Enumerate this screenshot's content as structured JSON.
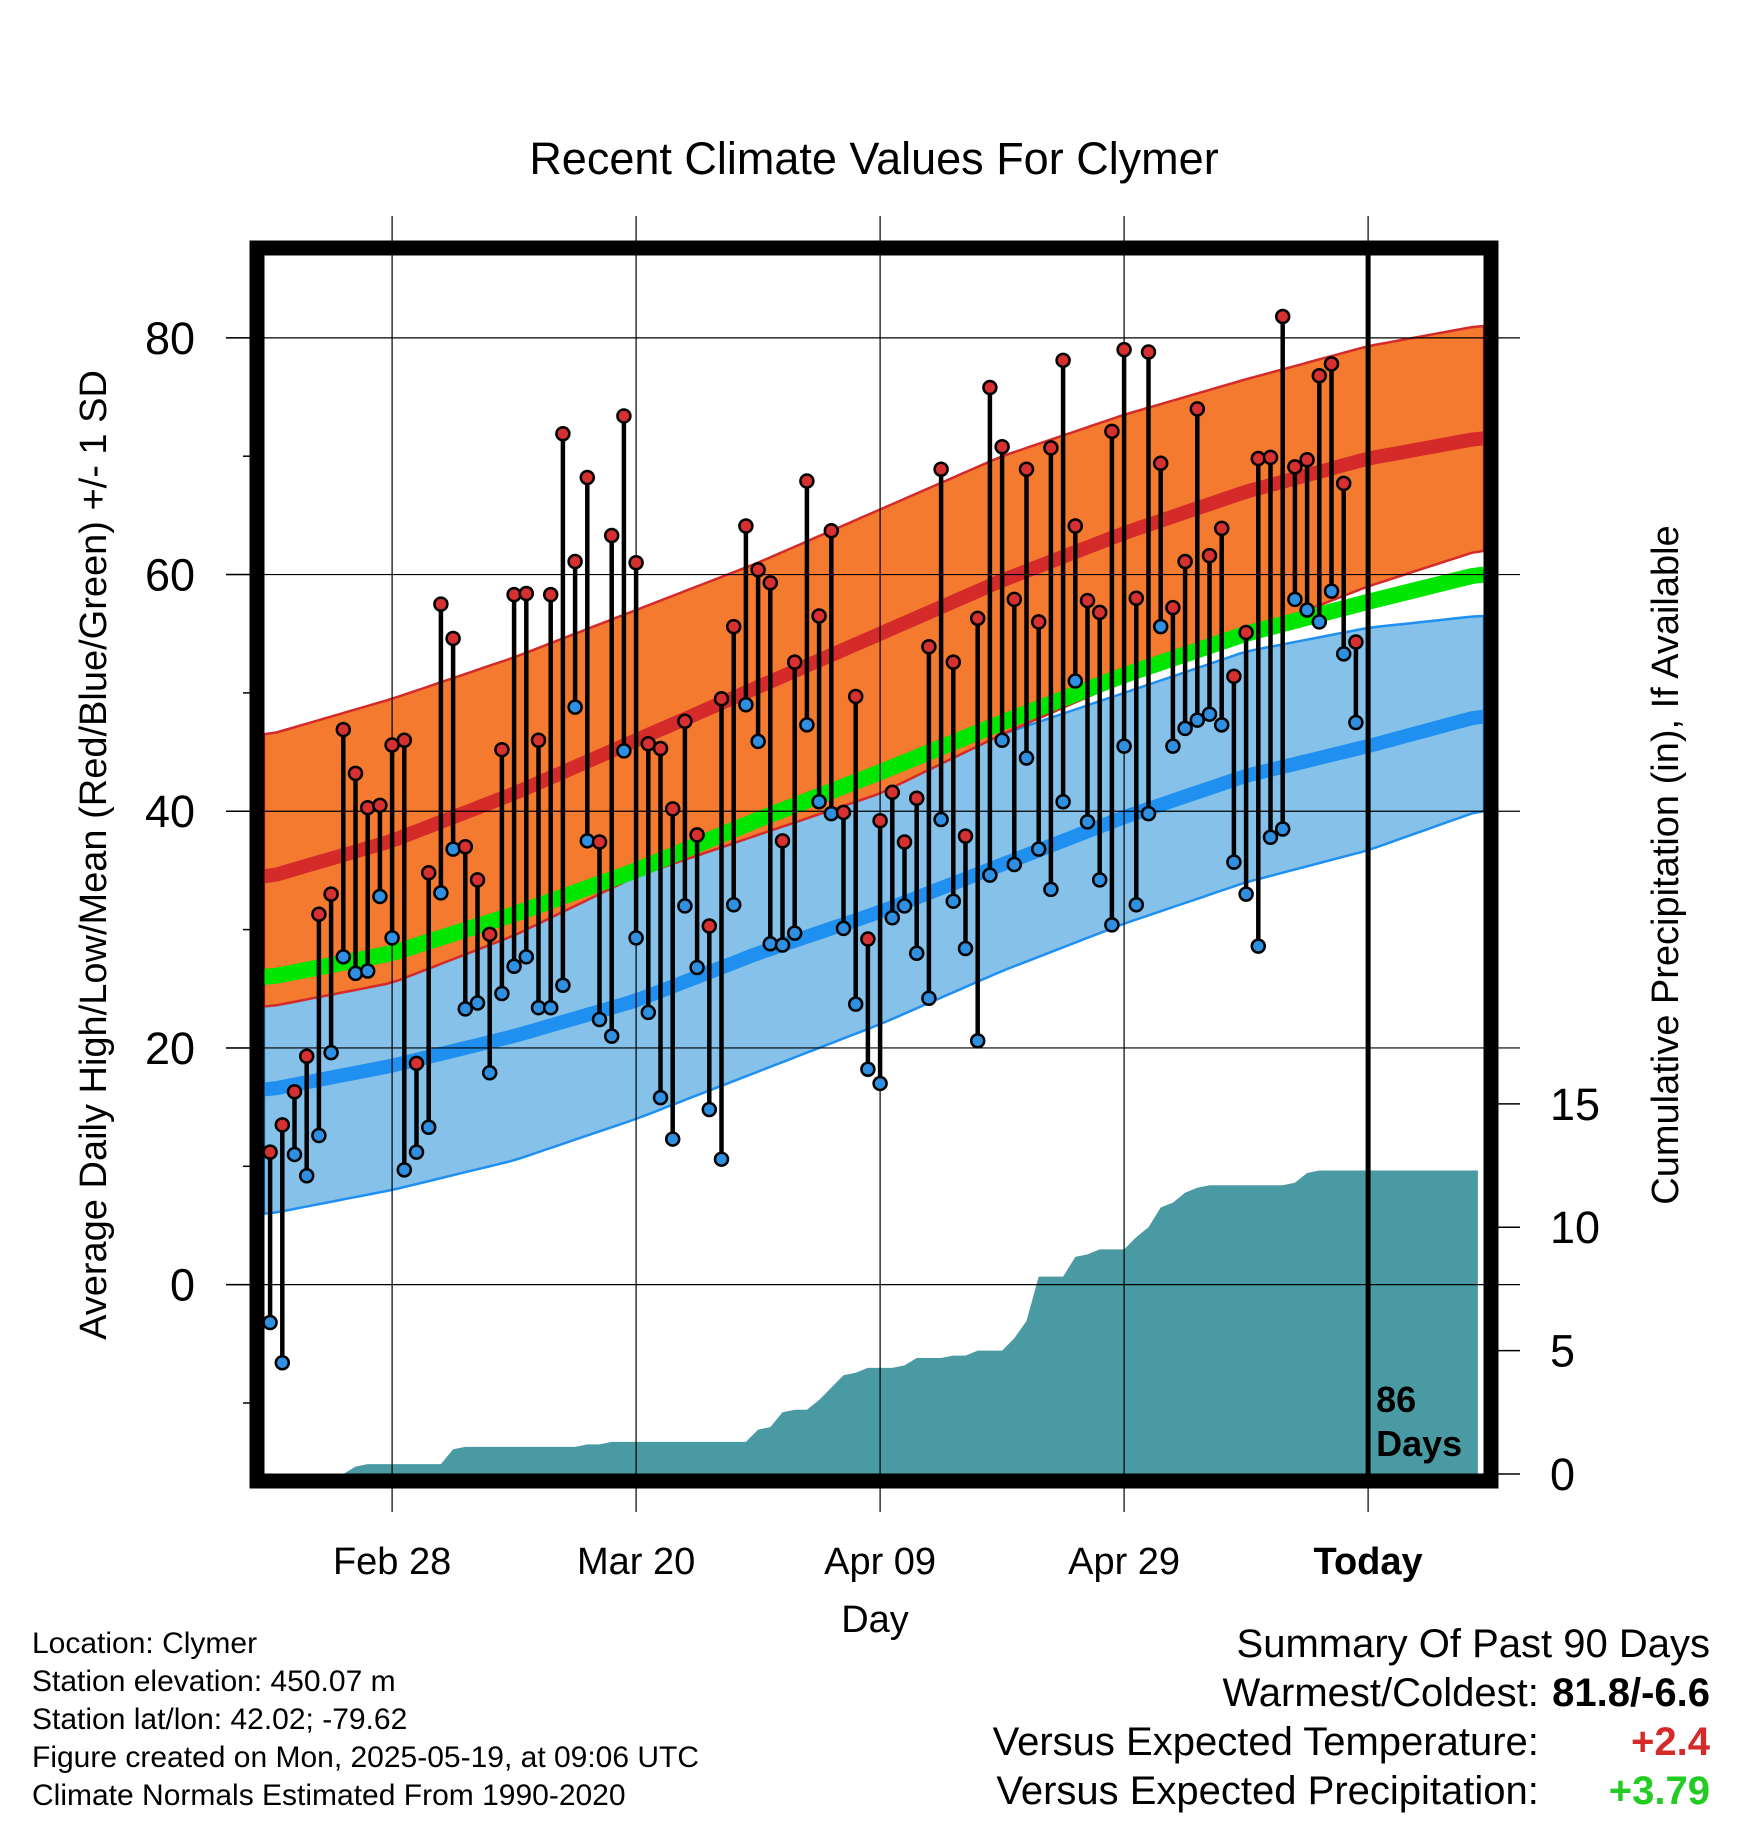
{
  "chart_data": {
    "type": "line",
    "title": "Recent Climate Values For Clymer",
    "xlabel": "Day",
    "ylabel": "Average Daily High/Low/Mean (Red/Blue/Green) +/- 1 SD",
    "ylabel_right": "Cumulative Precipitation (in), If Available",
    "x_ticks": [
      "Feb 28",
      "Mar 20",
      "Apr 09",
      "Apr 29",
      "Today"
    ],
    "x_tick_days": [
      10,
      30,
      50,
      70,
      90
    ],
    "xlim": [
      -0.5,
      99.5
    ],
    "ylim": [
      -16,
      87
    ],
    "y_ticks": [
      0,
      20,
      40,
      60,
      80
    ],
    "y2_ticks": [
      0,
      5,
      10,
      15
    ],
    "y2lim": [
      0,
      49.4
    ],
    "today_marker_day": 90,
    "today_label": [
      "86",
      "Days"
    ],
    "grid": true,
    "colors": {
      "high_band": "#f47a30",
      "high_line": "#d42a2a",
      "low_band": "#85c1e9",
      "low_line": "#1f8ff0",
      "mean_line": "#00e600",
      "mean_overlap": "#9a1414",
      "precip": "#4a9aa3",
      "high_dot": "#d63030",
      "low_dot": "#2f8fe0"
    },
    "normals": {
      "day": [
        0,
        10,
        20,
        30,
        40,
        50,
        60,
        70,
        80,
        90,
        99
      ],
      "high_mean": [
        34.5,
        37.5,
        41.5,
        46,
        50.5,
        55,
        59.5,
        63.5,
        67,
        69.8,
        71.5
      ],
      "high_upper": [
        46.5,
        49.5,
        53,
        57,
        61,
        65.5,
        70,
        73.5,
        76.5,
        79.3,
        81
      ],
      "high_lower": [
        23.5,
        25.5,
        29.5,
        34.5,
        38,
        41.5,
        46.5,
        51,
        55,
        59,
        62
      ],
      "low_mean": [
        16.5,
        18.5,
        21,
        24,
        28,
        31.5,
        35.5,
        39.5,
        43,
        45.5,
        48
      ],
      "low_upper": [
        28.5,
        29.5,
        31.5,
        35.5,
        39.5,
        43,
        46.5,
        50,
        53.5,
        55.5,
        56.5
      ],
      "low_lower": [
        6,
        8,
        10.5,
        14,
        18,
        22,
        26.5,
        30.5,
        34,
        36.7,
        40
      ],
      "avg_mean": [
        26,
        28,
        31.3,
        35,
        39.3,
        43.3,
        47.5,
        51.5,
        55,
        57.7,
        60
      ]
    },
    "series": [
      {
        "name": "High",
        "values": [
          11.2,
          13.5,
          16.3,
          19.3,
          31.3,
          33.0,
          46.9,
          43.2,
          40.3,
          40.5,
          45.6,
          46.0,
          18.7,
          34.8,
          57.5,
          54.6,
          37.0,
          34.2,
          29.6,
          45.2,
          58.3,
          58.4,
          46.0,
          58.3,
          71.9,
          61.1,
          68.2,
          37.4,
          63.3,
          73.4,
          61.0,
          45.7,
          45.3,
          40.2,
          47.6,
          38.0,
          30.3,
          49.5,
          55.6,
          64.1,
          60.4,
          59.3,
          37.5,
          52.6,
          67.9,
          56.5,
          63.7,
          39.9,
          49.7,
          29.2,
          39.2,
          41.6,
          37.4,
          41.1,
          53.9,
          68.9,
          52.6,
          37.9,
          56.3,
          75.8,
          70.8,
          57.9,
          68.9,
          56.0,
          70.7,
          78.1,
          64.1,
          57.8,
          56.8,
          72.1,
          79.0,
          58.0,
          78.8,
          69.4,
          57.2,
          61.1,
          74.0,
          61.6,
          63.9,
          51.4,
          55.1,
          69.8,
          69.9,
          81.8,
          69.1,
          69.7,
          76.8,
          77.8,
          67.7,
          54.3
        ]
      },
      {
        "name": "Low",
        "values": [
          -3.2,
          -6.6,
          11.0,
          9.2,
          12.6,
          19.6,
          27.7,
          26.3,
          26.5,
          32.8,
          29.3,
          9.7,
          11.2,
          13.3,
          33.1,
          36.8,
          23.3,
          23.8,
          17.9,
          24.6,
          26.9,
          27.7,
          23.4,
          23.4,
          25.3,
          48.8,
          37.5,
          22.4,
          21.0,
          45.1,
          29.3,
          23.0,
          15.8,
          12.3,
          32.0,
          26.8,
          14.8,
          10.6,
          32.1,
          49.0,
          45.9,
          28.8,
          28.7,
          29.7,
          47.3,
          40.8,
          39.8,
          30.1,
          23.7,
          18.2,
          17.0,
          31.0,
          32.0,
          28.0,
          24.2,
          39.3,
          32.4,
          28.4,
          20.6,
          34.6,
          46.0,
          35.5,
          44.5,
          36.8,
          33.4,
          40.8,
          51.0,
          39.1,
          34.2,
          30.4,
          45.5,
          32.1,
          39.8,
          55.6,
          45.5,
          47.0,
          47.7,
          48.2,
          47.3,
          35.7,
          33.0,
          28.6,
          37.8,
          38.5,
          57.9,
          57.0,
          56.0,
          58.6,
          53.3,
          47.5
        ]
      }
    ],
    "precipitation": {
      "day": [
        0,
        6,
        7,
        8,
        9,
        10,
        11,
        12,
        13,
        14,
        15,
        16,
        17,
        18,
        19,
        20,
        21,
        22,
        23,
        24,
        25,
        26,
        27,
        28,
        29,
        30,
        31,
        32,
        33,
        34,
        35,
        36,
        37,
        38,
        39,
        40,
        41,
        42,
        43,
        44,
        45,
        46,
        47,
        48,
        49,
        50,
        51,
        52,
        53,
        54,
        55,
        56,
        57,
        58,
        59,
        60,
        61,
        62,
        63,
        64,
        65,
        66,
        67,
        68,
        69,
        70,
        71,
        72,
        73,
        74,
        75,
        76,
        77,
        78,
        79,
        80,
        81,
        82,
        83,
        84,
        85,
        86,
        87,
        88,
        99
      ],
      "value": [
        0,
        0,
        0.3,
        0.4,
        0.4,
        0.4,
        0.4,
        0.4,
        0.4,
        0.4,
        1.0,
        1.1,
        1.1,
        1.1,
        1.1,
        1.1,
        1.1,
        1.1,
        1.1,
        1.1,
        1.1,
        1.2,
        1.2,
        1.3,
        1.3,
        1.3,
        1.3,
        1.3,
        1.3,
        1.3,
        1.3,
        1.3,
        1.3,
        1.3,
        1.3,
        1.8,
        1.9,
        2.5,
        2.6,
        2.6,
        3.0,
        3.5,
        4.0,
        4.1,
        4.3,
        4.3,
        4.3,
        4.4,
        4.7,
        4.7,
        4.7,
        4.8,
        4.8,
        5.0,
        5.0,
        5.0,
        5.5,
        6.2,
        8.0,
        8.0,
        8.0,
        8.8,
        8.9,
        9.1,
        9.1,
        9.1,
        9.6,
        10.0,
        10.8,
        11.0,
        11.4,
        11.6,
        11.7,
        11.7,
        11.7,
        11.7,
        11.7,
        11.7,
        11.7,
        11.8,
        12.2,
        12.3,
        12.3,
        12.3,
        12.3
      ]
    }
  },
  "footer": {
    "location": "Location: Clymer",
    "elevation": "Station elevation: 450.07 m",
    "latlon": "Station lat/lon: 42.02; -79.62",
    "created": "Figure created on Mon, 2025-05-19, at 09:06 UTC",
    "normals": "Climate Normals Estimated From 1990-2020"
  },
  "summary": {
    "heading": "Summary Of Past 90 Days",
    "warmest_label": "Warmest/Coldest:",
    "warmest_value": "81.8/-6.6",
    "temp_label": "Versus Expected Temperature:",
    "temp_value": "+2.4",
    "temp_color": "#d42a2a",
    "precip_label": "Versus Expected Precipitation:",
    "precip_value": "+3.79",
    "precip_color": "#22cc22"
  }
}
